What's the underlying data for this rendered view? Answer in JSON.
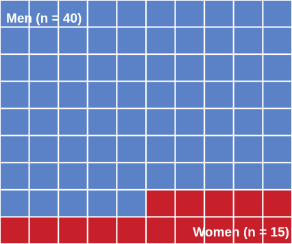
{
  "chart_data": {
    "type": "waffle",
    "grid": {
      "rows": 9,
      "columns": 10
    },
    "series": [
      {
        "name": "Men",
        "count": 40,
        "color": "#5b82c6"
      },
      {
        "name": "Women",
        "count": 15,
        "color": "#c8202b"
      }
    ],
    "labels": {
      "men": "Men (n = 40)",
      "women": "Women (n = 15)"
    },
    "grid_line_color": "#ffffff"
  }
}
